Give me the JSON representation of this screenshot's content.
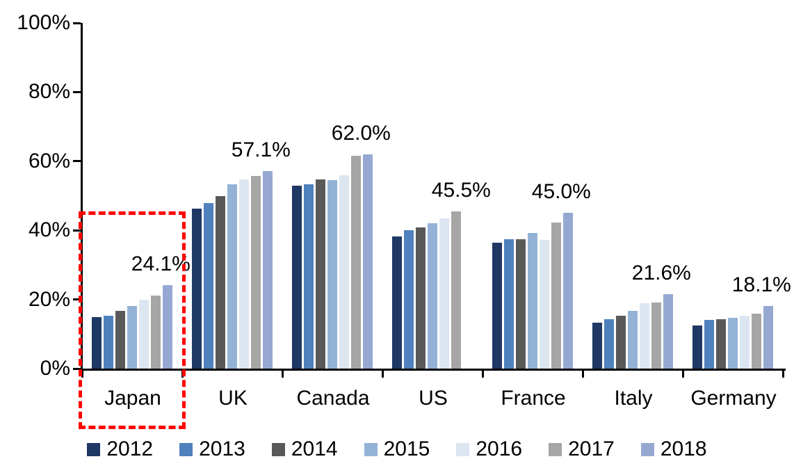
{
  "chart_data": {
    "type": "bar",
    "title": "",
    "xlabel": "",
    "ylabel": "",
    "categories": [
      "Japan",
      "UK",
      "Canada",
      "US",
      "France",
      "Italy",
      "Germany"
    ],
    "series": [
      {
        "name": "2012",
        "color": "#1F3864",
        "values": [
          14.8,
          46.3,
          53.0,
          38.2,
          36.5,
          13.3,
          12.5
        ]
      },
      {
        "name": "2013",
        "color": "#4F81BD",
        "values": [
          15.2,
          47.8,
          53.3,
          40.0,
          37.5,
          14.2,
          14.1
        ]
      },
      {
        "name": "2014",
        "color": "#595959",
        "values": [
          16.7,
          49.9,
          54.7,
          40.9,
          37.5,
          15.3,
          14.3
        ]
      },
      {
        "name": "2015",
        "color": "#93B2D6",
        "values": [
          18.1,
          53.3,
          54.5,
          42.0,
          39.2,
          16.8,
          14.7
        ]
      },
      {
        "name": "2016",
        "color": "#DCE6F1",
        "values": [
          19.9,
          54.8,
          56.0,
          43.5,
          37.2,
          18.9,
          15.3
        ]
      },
      {
        "name": "2017",
        "color": "#A6A6A6",
        "values": [
          21.2,
          55.8,
          61.5,
          45.5,
          42.2,
          19.1,
          15.9
        ]
      },
      {
        "name": "2018",
        "color": "#96A8D2",
        "values": [
          24.1,
          57.1,
          62.0,
          null,
          45.0,
          21.6,
          18.1
        ]
      }
    ],
    "group_max_labels": [
      "24.1%",
      "57.1%",
      "62.0%",
      "45.5%",
      "45.0%",
      "21.6%",
      "18.1%"
    ],
    "y_axis": {
      "min": 0,
      "max": 100,
      "tick_step": 20,
      "tick_labels": [
        "100%",
        "80%",
        "60%",
        "40%",
        "20%",
        "0%"
      ]
    },
    "legend": {
      "position": "bottom",
      "entries": [
        "2012",
        "2013",
        "2014",
        "2015",
        "2016",
        "2017",
        "2018"
      ]
    },
    "grid": false,
    "annotations": {
      "highlight": {
        "category": "Japan",
        "shape": "dashed-rectangle",
        "color": "#FF0000"
      }
    }
  }
}
